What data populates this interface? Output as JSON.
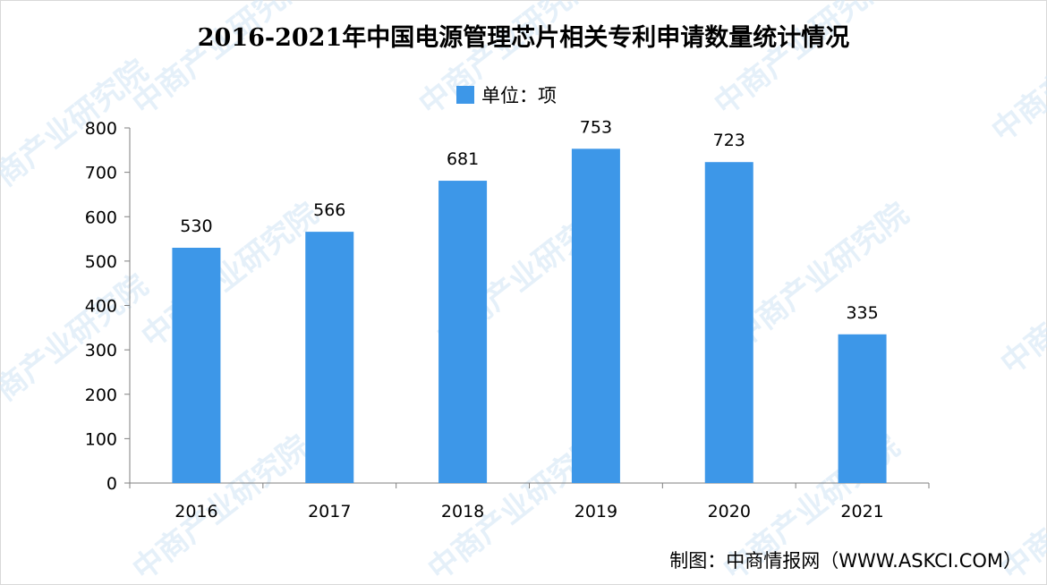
{
  "chart_data": {
    "type": "bar",
    "title": "2016-2021年中国电源管理芯片相关专利申请数量统计情况",
    "categories": [
      "2016",
      "2017",
      "2018",
      "2019",
      "2020",
      "2021"
    ],
    "series": [
      {
        "name": "单位：项",
        "values": [
          530,
          566,
          681,
          753,
          723,
          335
        ],
        "color": "#3d97e8"
      }
    ],
    "ylim": [
      0,
      800
    ],
    "yticks": [
      0,
      100,
      200,
      300,
      400,
      500,
      600,
      700,
      800
    ],
    "data_labels": true,
    "grid": false,
    "legend_position": "top-center"
  },
  "source": "制图：中商情报网（WWW.ASKCI.COM）",
  "watermark_text": "中商产业研究院"
}
